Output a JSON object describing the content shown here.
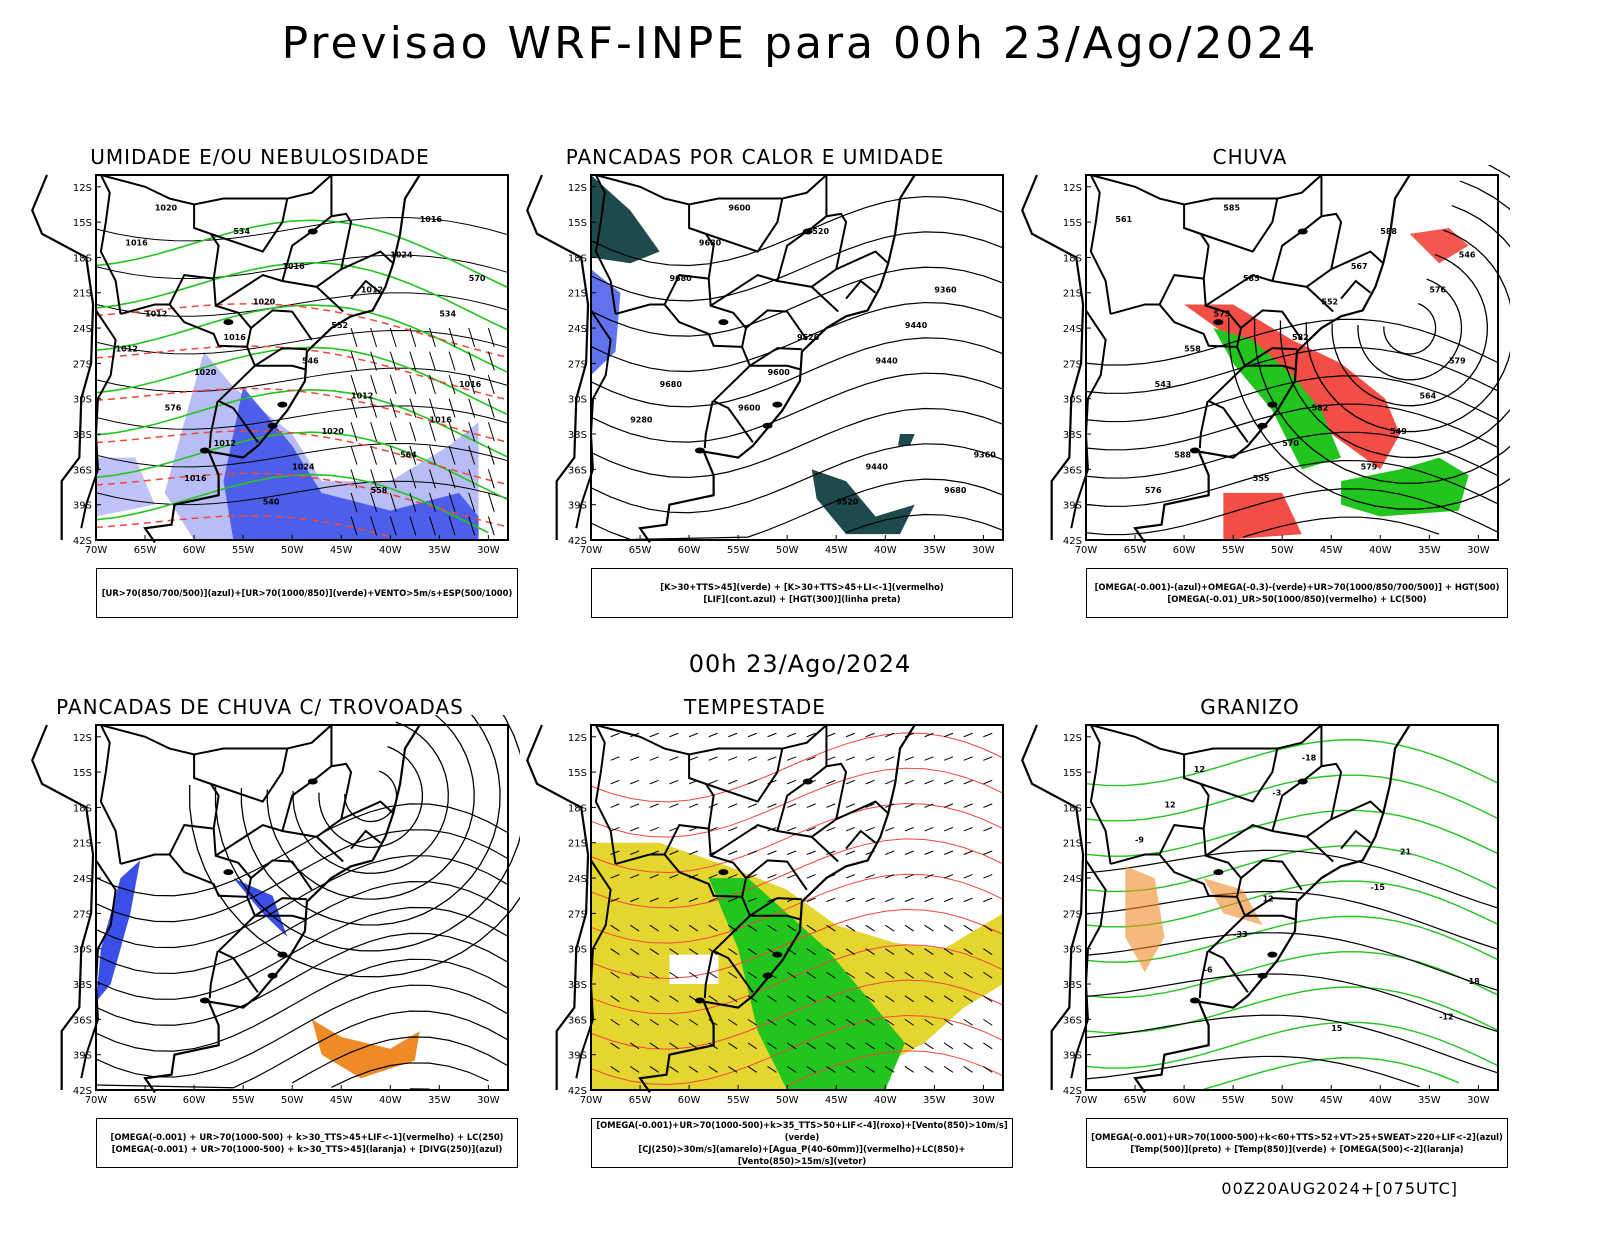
{
  "header": {
    "title": "Previsao WRF-INPE  para 00h 23/Ago/2024",
    "mid_title": "00h 23/Ago/2024",
    "footer_stamp": "00Z20AUG2024+[075UTC]"
  },
  "axes": {
    "lat_labels": [
      "12S",
      "15S",
      "18S",
      "21S",
      "24S",
      "27S",
      "30S",
      "33S",
      "36S",
      "39S",
      "42S"
    ],
    "lon_labels": [
      "70W",
      "65W",
      "60W",
      "55W",
      "50W",
      "45W",
      "40W",
      "35W",
      "30W"
    ]
  },
  "colors": {
    "blue": "#3a4fe8",
    "light_blue": "#b9bdf6",
    "green": "#22c41e",
    "red": "#f2453c",
    "orange": "#ef8b27",
    "yellow": "#e5d62f",
    "dark_teal": "#1f4a4d"
  },
  "panels": [
    {
      "title": "UMIDADE E/OU NEBULOSIDADE",
      "legend": [
        "[UR>70(850/700/500)](azul)+[UR>70(1000/850)](verde)+VENTO>5m/s+ESP(500/1000)"
      ],
      "labels": [
        "1012",
        "1012",
        "1016",
        "1012",
        "1016",
        "1012",
        "1016",
        "1020",
        "1020",
        "1024",
        "1016",
        "1020",
        "1016",
        "1024",
        "1012",
        "1016",
        "1016",
        "1020",
        "540",
        "552",
        "564",
        "570",
        "576",
        "534",
        "546",
        "558",
        "534"
      ]
    },
    {
      "title": "PANCADAS POR CALOR E UMIDADE",
      "legend": [
        "[K>30+TTS>45](verde) + [K>30+TTS>45+LI<-1](vermelho)",
        "[LIF](cont.azul) + [HGT(300)](linha preta)"
      ],
      "labels": [
        "9680",
        "9600",
        "9520",
        "9440",
        "9360",
        "9280",
        "9680",
        "9600",
        "9520",
        "9440",
        "9360",
        "9680",
        "9600",
        "9520",
        "9440",
        "9680"
      ]
    },
    {
      "title": "CHUVA",
      "legend": [
        "[OMEGA(-0.001)-(azul)+OMEGA(-0.3)-(verde)+UR>70(1000/850/700/500)] + HGT(500)",
        "[OMEGA(-0.01)_UR>50(1000/850)(vermelho) + LC(500)"
      ],
      "labels": [
        "588",
        "585",
        "582",
        "588",
        "579",
        "576",
        "573",
        "570",
        "567",
        "564",
        "561",
        "558",
        "555",
        "552",
        "549",
        "546",
        "543",
        "585",
        "582",
        "579",
        "576"
      ]
    },
    {
      "title": "PANCADAS DE CHUVA C/ TROVOADAS",
      "legend": [
        "[OMEGA(-0.001) + UR>70(1000-500) + k>30_TTS>45+LIF<-1](vermelho) + LC(250)",
        "[OMEGA(-0.001) + UR>70(1000-500) + k>30_TTS>45](laranja) + [DIVG(250)](azul)"
      ],
      "labels": []
    },
    {
      "title": "TEMPESTADE",
      "legend": [
        "[OMEGA(-0.001)+UR>70(1000-500)+k>35_TTS>50+LIF<-4](roxo)+[Vento(850)>10m/s](verde)",
        "[CJ(250)>30m/s](amarelo)+[Agua_P(40-60mm)](vermelho)+LC(850)+[Vento(850)>15m/s](vetor)"
      ],
      "labels": []
    },
    {
      "title": "GRANIZO",
      "legend": [
        "[OMEGA(-0.001)+UR>70(1000-500)+k<60+TTS>52+VT>25+SWEAT>220+LIF<-2](azul)",
        "[Temp(500)](preto) + [Temp(850)](verde) + [OMEGA(500)<-2](laranja)"
      ],
      "labels": [
        "12",
        "12",
        "15",
        "21",
        "18",
        "12",
        "-33",
        "-18",
        "-15",
        "-12",
        "-9",
        "-6",
        "-3"
      ]
    }
  ]
}
